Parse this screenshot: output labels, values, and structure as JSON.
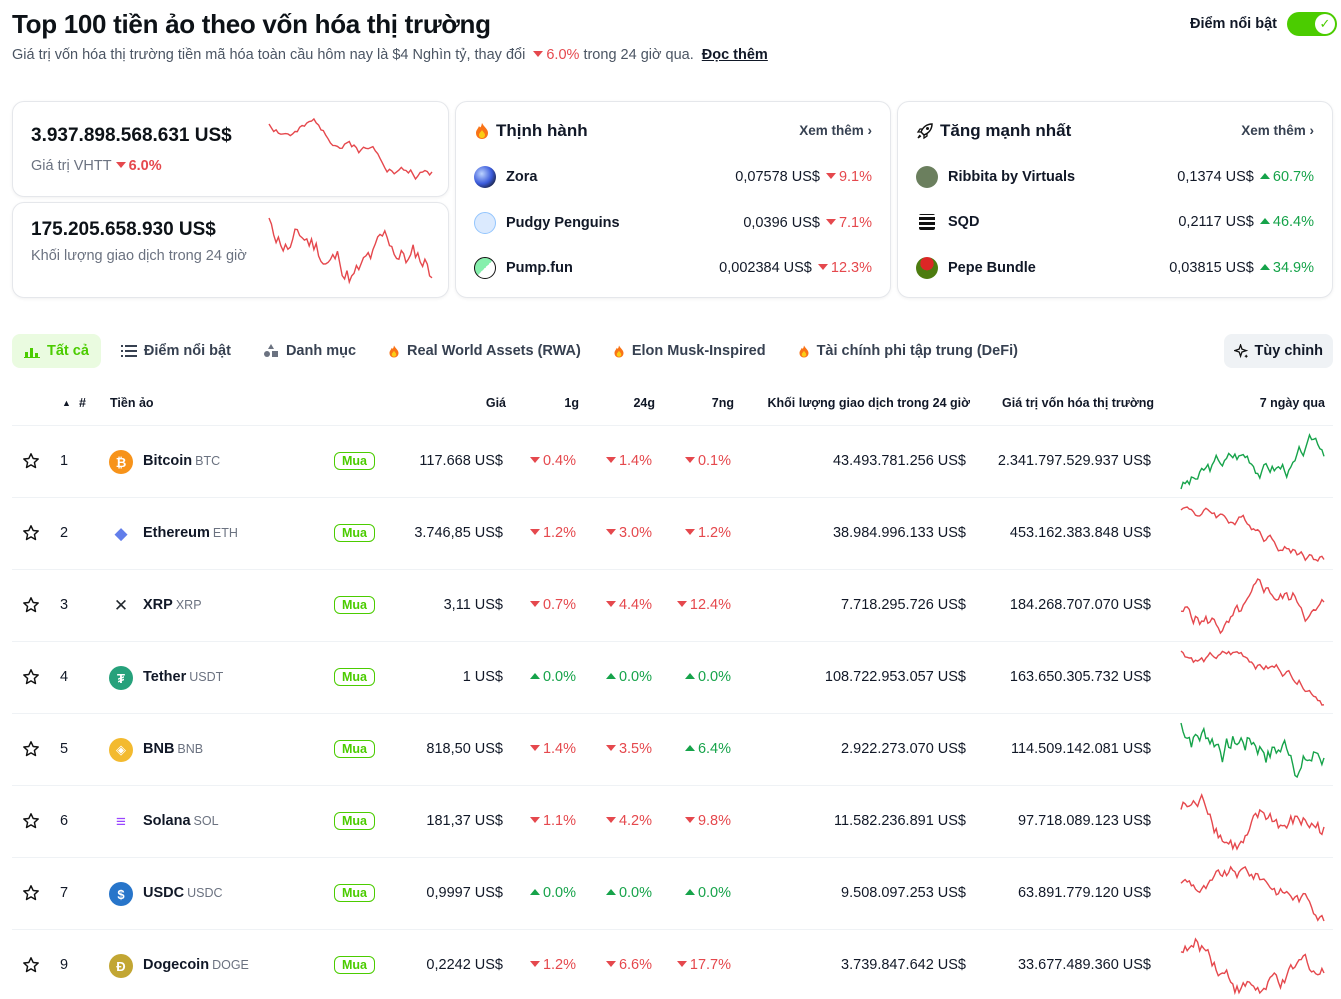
{
  "header": {
    "title": "Top 100 tiền ảo theo vốn hóa thị trường",
    "subtitle_prefix": "Giá trị vốn hóa thị trường tiền mã hóa toàn cầu hôm nay là $4 Nghìn tỷ, thay đổi",
    "subtitle_change": "6.0%",
    "subtitle_suffix": "trong 24 giờ qua.",
    "read_more": "Đọc thêm",
    "highlight_label": "Điểm nổi bật",
    "highlight_on": true
  },
  "colors": {
    "accent": "#4bcc00",
    "down": "#e5484d",
    "up": "#16a34a"
  },
  "stats": {
    "market_cap_value": "3.937.898.568.631 US$",
    "market_cap_label": "Giá trị VHTT",
    "market_cap_change": "6.0%",
    "volume_value": "175.205.658.930 US$",
    "volume_label": "Khối lượng giao dịch trong 24 giờ"
  },
  "trending": {
    "title": "Thịnh hành",
    "see_more": "Xem thêm",
    "items": [
      {
        "name": "Zora",
        "price": "0,07578 US$",
        "change": "9.1%",
        "dir": "down"
      },
      {
        "name": "Pudgy Penguins",
        "price": "0,0396 US$",
        "change": "7.1%",
        "dir": "down"
      },
      {
        "name": "Pump.fun",
        "price": "0,002384 US$",
        "change": "12.3%",
        "dir": "down"
      }
    ]
  },
  "gainers": {
    "title": "Tăng mạnh nhất",
    "see_more": "Xem thêm",
    "items": [
      {
        "name": "Ribbita by Virtuals",
        "price": "0,1374 US$",
        "change": "60.7%",
        "dir": "up"
      },
      {
        "name": "SQD",
        "price": "0,2117 US$",
        "change": "46.4%",
        "dir": "up"
      },
      {
        "name": "Pepe Bundle",
        "price": "0,03815 US$",
        "change": "34.9%",
        "dir": "up"
      }
    ]
  },
  "tabs": [
    {
      "label": "Tất cả",
      "icon": "chart-bars-icon",
      "active": true
    },
    {
      "label": "Điểm nổi bật",
      "icon": "list-icon"
    },
    {
      "label": "Danh mục",
      "icon": "shapes-icon"
    },
    {
      "label": "Real World Assets (RWA)",
      "icon": "fire-icon"
    },
    {
      "label": "Elon Musk-Inspired",
      "icon": "fire-icon"
    },
    {
      "label": "Tài chính phi tập trung (DeFi)",
      "icon": "fire-icon"
    }
  ],
  "customize_label": "Tùy chỉnh",
  "table": {
    "headers": {
      "rank": "#",
      "coin": "Tiền ảo",
      "price": "Giá",
      "h1": "1g",
      "h24": "24g",
      "d7": "7ng",
      "volume": "Khối lượng giao dịch trong 24 giờ",
      "cap": "Giá trị vốn hóa thị trường",
      "spark": "7 ngày qua"
    },
    "buy_label": "Mua",
    "rows": [
      {
        "rank": "1",
        "name": "Bitcoin",
        "sym": "BTC",
        "price": "117.668 US$",
        "h1": "0.4%",
        "h1d": "down",
        "h24": "1.4%",
        "h24d": "down",
        "d7": "0.1%",
        "d7d": "down",
        "vol": "43.493.781.256 US$",
        "cap": "2.341.797.529.937 US$",
        "trend": "up",
        "color": "#f7931a"
      },
      {
        "rank": "2",
        "name": "Ethereum",
        "sym": "ETH",
        "price": "3.746,85 US$",
        "h1": "1.2%",
        "h1d": "down",
        "h24": "3.0%",
        "h24d": "down",
        "d7": "1.2%",
        "d7d": "down",
        "vol": "38.984.996.133 US$",
        "cap": "453.162.383.848 US$",
        "trend": "down",
        "color": "#627eea"
      },
      {
        "rank": "3",
        "name": "XRP",
        "sym": "XRP",
        "price": "3,11 US$",
        "h1": "0.7%",
        "h1d": "down",
        "h24": "4.4%",
        "h24d": "down",
        "d7": "12.4%",
        "d7d": "down",
        "vol": "7.718.295.726 US$",
        "cap": "184.268.707.070 US$",
        "trend": "down",
        "color": "#23292f"
      },
      {
        "rank": "4",
        "name": "Tether",
        "sym": "USDT",
        "price": "1 US$",
        "h1": "0.0%",
        "h1d": "up",
        "h24": "0.0%",
        "h24d": "up",
        "d7": "0.0%",
        "d7d": "up",
        "vol": "108.722.953.057 US$",
        "cap": "163.650.305.732 US$",
        "trend": "down",
        "color": "#26a17b"
      },
      {
        "rank": "5",
        "name": "BNB",
        "sym": "BNB",
        "price": "818,50 US$",
        "h1": "1.4%",
        "h1d": "down",
        "h24": "3.5%",
        "h24d": "down",
        "d7": "6.4%",
        "d7d": "up",
        "vol": "2.922.273.070 US$",
        "cap": "114.509.142.081 US$",
        "trend": "up",
        "color": "#f3ba2f"
      },
      {
        "rank": "6",
        "name": "Solana",
        "sym": "SOL",
        "price": "181,37 US$",
        "h1": "1.1%",
        "h1d": "down",
        "h24": "4.2%",
        "h24d": "down",
        "d7": "9.8%",
        "d7d": "down",
        "vol": "11.582.236.891 US$",
        "cap": "97.718.089.123 US$",
        "trend": "down",
        "color": "#9945ff"
      },
      {
        "rank": "7",
        "name": "USDC",
        "sym": "USDC",
        "price": "0,9997 US$",
        "h1": "0.0%",
        "h1d": "up",
        "h24": "0.0%",
        "h24d": "up",
        "d7": "0.0%",
        "d7d": "up",
        "vol": "9.508.097.253 US$",
        "cap": "63.891.779.120 US$",
        "trend": "down",
        "color": "#2775ca"
      },
      {
        "rank": "9",
        "name": "Dogecoin",
        "sym": "DOGE",
        "price": "0,2242 US$",
        "h1": "1.2%",
        "h1d": "down",
        "h24": "6.6%",
        "h24d": "down",
        "d7": "17.7%",
        "d7d": "down",
        "vol": "3.739.847.642 US$",
        "cap": "33.677.489.360 US$",
        "trend": "down",
        "color": "#c2a633"
      }
    ]
  }
}
